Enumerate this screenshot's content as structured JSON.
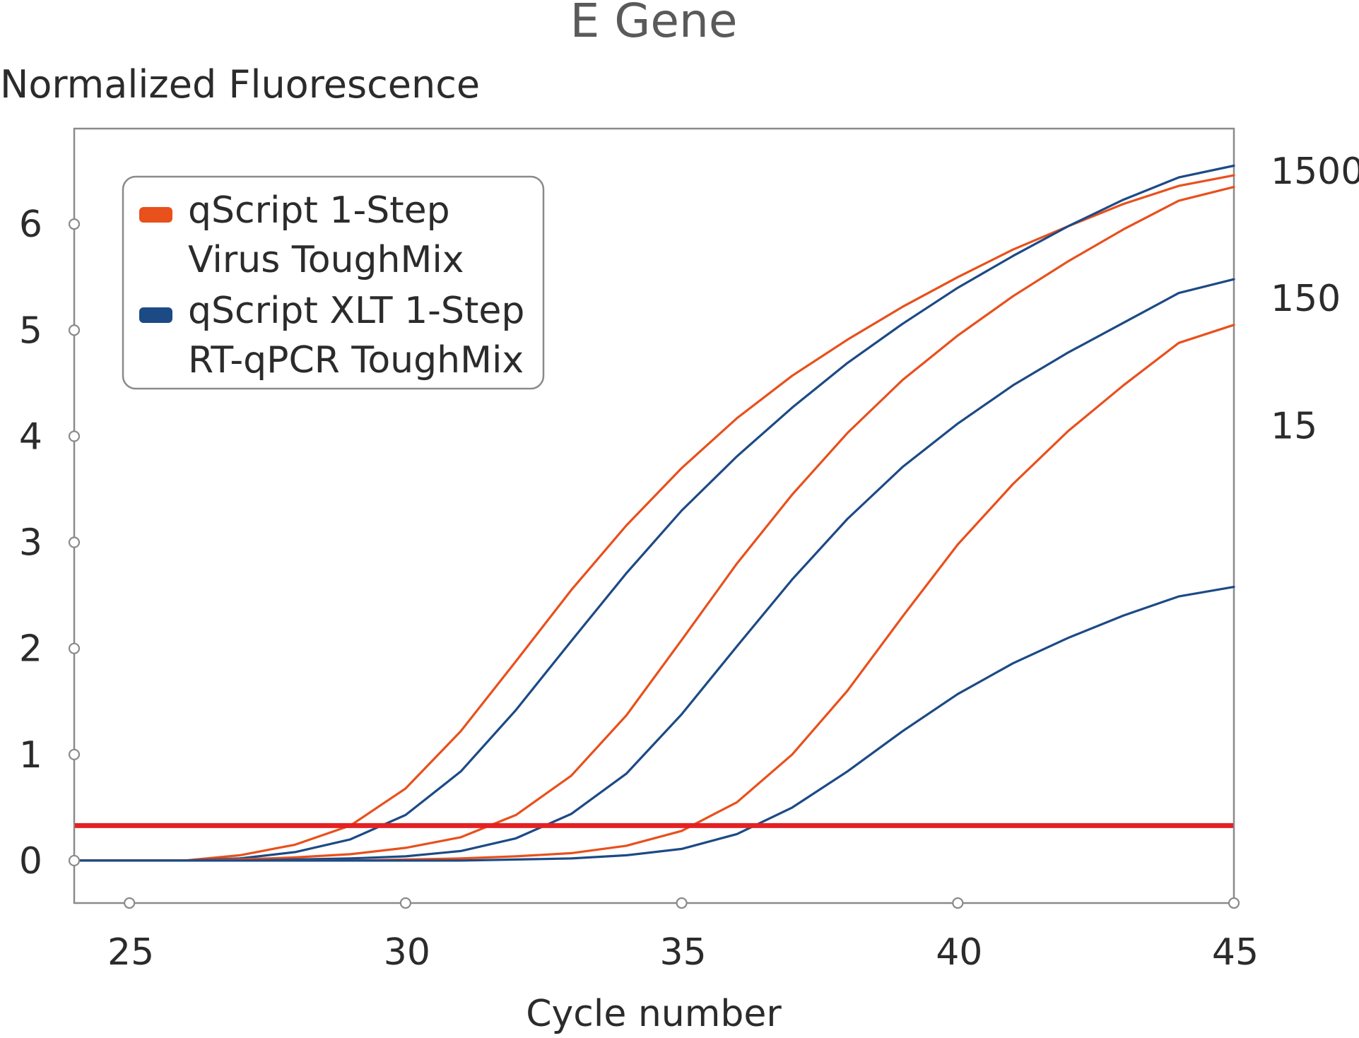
{
  "chart_data": {
    "type": "line",
    "title": "E Gene",
    "ylabel": "Normalized Fluorescence",
    "xlabel": "Cycle number",
    "xlim": [
      24,
      45
    ],
    "ylim": [
      -0.4,
      6.9
    ],
    "x_ticks": [
      25,
      30,
      35,
      40,
      45
    ],
    "y_ticks": [
      0,
      1,
      2,
      3,
      4,
      5,
      6
    ],
    "grid": false,
    "legend_position": "top-left",
    "threshold": {
      "y": 0.33,
      "color": "#e32124"
    },
    "legend": [
      {
        "lines": [
          "qScript 1-Step",
          "Virus ToughMix"
        ],
        "color": "#e8501c"
      },
      {
        "lines": [
          "qScript XLT 1-Step",
          "RT-qPCR ToughMix"
        ],
        "color": "#1c4a85"
      }
    ],
    "right_labels": [
      {
        "text": "1500",
        "y": 6.5
      },
      {
        "text": "150",
        "y": 5.3
      },
      {
        "text": "15",
        "y": 4.1
      }
    ],
    "x": [
      24,
      25,
      26,
      27,
      28,
      29,
      30,
      31,
      32,
      33,
      34,
      35,
      36,
      37,
      38,
      39,
      40,
      41,
      42,
      43,
      44,
      45
    ],
    "series": [
      {
        "color": "#e8501c",
        "values": [
          0.0,
          0.0,
          0.0,
          0.05,
          0.15,
          0.33,
          0.68,
          1.22,
          1.88,
          2.55,
          3.16,
          3.7,
          4.17,
          4.57,
          4.91,
          5.22,
          5.5,
          5.76,
          5.98,
          6.19,
          6.36,
          6.46
        ]
      },
      {
        "color": "#1c4a85",
        "values": [
          0.0,
          0.0,
          0.0,
          0.02,
          0.08,
          0.2,
          0.43,
          0.84,
          1.42,
          2.07,
          2.71,
          3.3,
          3.81,
          4.27,
          4.69,
          5.06,
          5.4,
          5.7,
          5.98,
          6.23,
          6.44,
          6.55
        ]
      },
      {
        "color": "#e8501c",
        "values": [
          0.0,
          0.0,
          0.0,
          0.01,
          0.03,
          0.06,
          0.12,
          0.22,
          0.43,
          0.8,
          1.37,
          2.08,
          2.8,
          3.45,
          4.03,
          4.53,
          4.95,
          5.32,
          5.65,
          5.95,
          6.22,
          6.35
        ]
      },
      {
        "color": "#1c4a85",
        "values": [
          0.0,
          0.0,
          0.0,
          0.0,
          0.01,
          0.02,
          0.04,
          0.09,
          0.21,
          0.44,
          0.82,
          1.38,
          2.02,
          2.65,
          3.22,
          3.71,
          4.12,
          4.48,
          4.79,
          5.07,
          5.35,
          5.48
        ]
      },
      {
        "color": "#e8501c",
        "values": [
          0.0,
          0.0,
          0.0,
          0.0,
          0.0,
          0.0,
          0.01,
          0.02,
          0.04,
          0.07,
          0.14,
          0.28,
          0.55,
          1.0,
          1.6,
          2.3,
          2.98,
          3.55,
          4.05,
          4.48,
          4.88,
          5.05
        ]
      },
      {
        "color": "#1c4a85",
        "values": [
          0.0,
          0.0,
          0.0,
          0.0,
          0.0,
          0.0,
          0.0,
          0.0,
          0.01,
          0.02,
          0.05,
          0.11,
          0.25,
          0.5,
          0.84,
          1.22,
          1.57,
          1.86,
          2.1,
          2.31,
          2.49,
          2.58
        ]
      }
    ]
  }
}
